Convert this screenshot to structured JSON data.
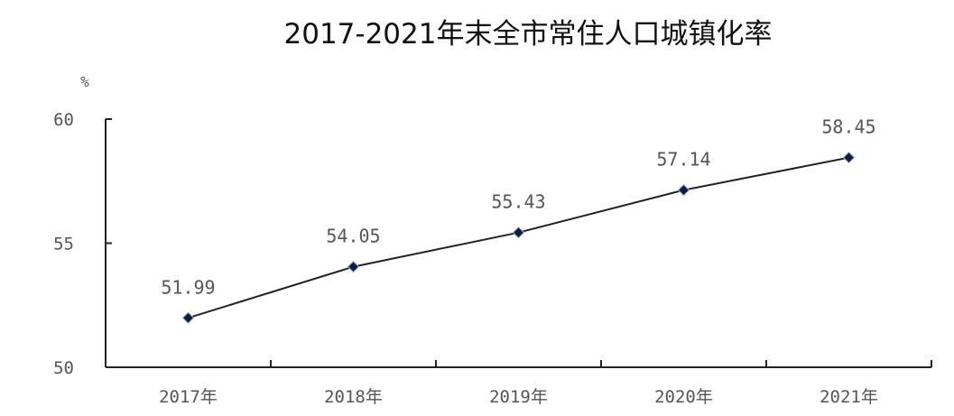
{
  "chart_data": {
    "type": "line",
    "title": "2017-2021年末全市常住人口城镇化率",
    "ylabel": "%",
    "xlabel": "",
    "categories": [
      "2017年",
      "2018年",
      "2019年",
      "2020年",
      "2021年"
    ],
    "values": [
      51.99,
      54.05,
      55.43,
      57.14,
      58.45
    ],
    "data_labels": [
      "51.99",
      "54.05",
      "55.43",
      "57.14",
      "58.45"
    ],
    "ylim": [
      50,
      60
    ],
    "yticks": [
      "50",
      "55",
      "60"
    ],
    "grid": false,
    "legend": "none",
    "colors": {
      "line": "#222222",
      "marker": "#0b1f45",
      "text": "#555555"
    }
  }
}
